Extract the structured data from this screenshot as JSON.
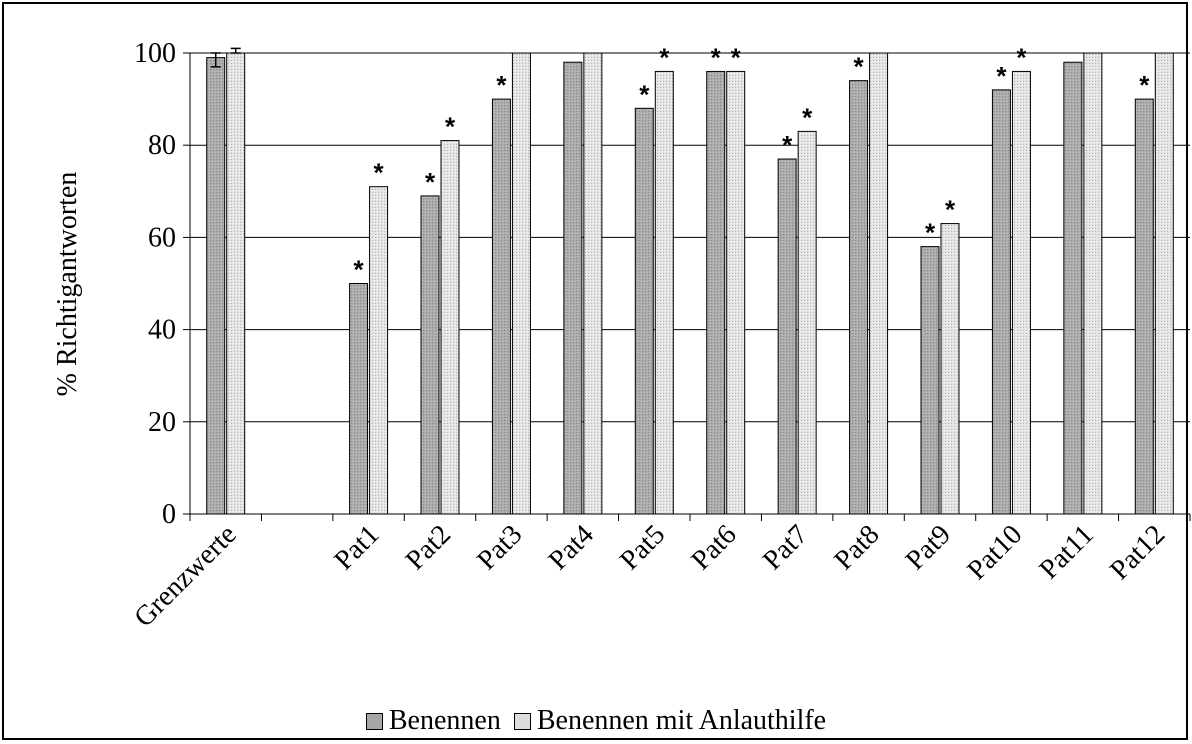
{
  "chart_data": {
    "type": "bar",
    "title": "",
    "xlabel": "",
    "ylabel": "% Richtigantworten",
    "ylim": [
      0,
      100
    ],
    "yticks": [
      0,
      20,
      40,
      60,
      80,
      100
    ],
    "grid": true,
    "legend_position": "bottom",
    "categories": [
      "Grenzwerte",
      "",
      "Pat1",
      "Pat2",
      "Pat3",
      "Pat4",
      "Pat5",
      "Pat6",
      "Pat7",
      "Pat8",
      "Pat9",
      "Pat10",
      "Pat11",
      "Pat12"
    ],
    "series": [
      {
        "name": "Benennen",
        "color": "#a6a6a6",
        "values": [
          99,
          null,
          50,
          69,
          90,
          98,
          88,
          96,
          77,
          94,
          58,
          92,
          98,
          90
        ],
        "significant": [
          false,
          false,
          true,
          true,
          true,
          false,
          true,
          true,
          true,
          true,
          true,
          true,
          false,
          true
        ]
      },
      {
        "name": "Benennen mit Anlauthilfe",
        "color": "#dcdcdc",
        "values": [
          100,
          null,
          71,
          81,
          100,
          100,
          96,
          96,
          83,
          100,
          63,
          96,
          100,
          100
        ],
        "significant": [
          false,
          false,
          true,
          true,
          false,
          false,
          true,
          true,
          true,
          false,
          true,
          true,
          false,
          false
        ]
      }
    ],
    "error_bars": {
      "category": "Grenzwerte",
      "series_0": [
        97,
        100
      ],
      "series_1": [
        100,
        101
      ]
    },
    "annotation_symbol": "*"
  }
}
